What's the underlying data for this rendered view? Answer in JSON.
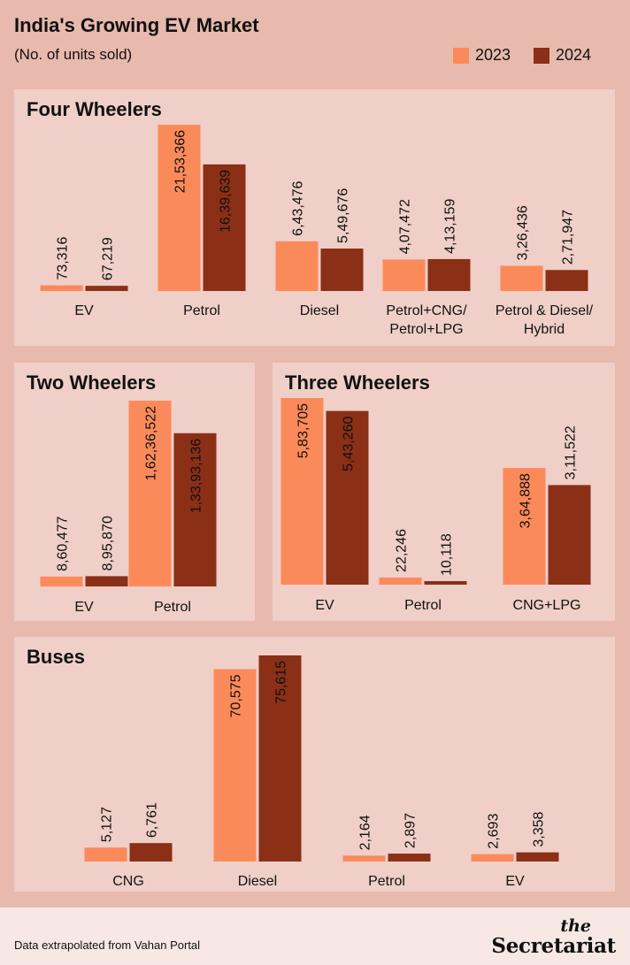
{
  "header": {
    "title": "India's Growing EV Market",
    "subtitle": "(No. of units sold)"
  },
  "legend": [
    {
      "label": "2023",
      "color": "#fb8a5b"
    },
    {
      "label": "2024",
      "color": "#8b2f17"
    }
  ],
  "chart_data": [
    {
      "type": "bar",
      "title": "Four Wheelers",
      "categories": [
        "EV",
        "Petrol",
        "Diesel",
        "Petrol+CNG/\nPetrol+LPG",
        "Petrol & Diesel/\nHybrid"
      ],
      "series": [
        {
          "name": "2023",
          "values": [
            73316,
            2153366,
            643476,
            407472,
            326436
          ],
          "labels": [
            "73,316",
            "21,53,366",
            "6,43,476",
            "4,07,472",
            "3,26,436"
          ]
        },
        {
          "name": "2024",
          "values": [
            67219,
            1639639,
            549676,
            413159,
            271947
          ],
          "labels": [
            "67,219",
            "16,39,639",
            "5,49,676",
            "4,13,159",
            "2,71,947"
          ]
        }
      ]
    },
    {
      "type": "bar",
      "title": "Two Wheelers",
      "categories": [
        "EV",
        "Petrol"
      ],
      "series": [
        {
          "name": "2023",
          "values": [
            860477,
            16236522
          ],
          "labels": [
            "8,60,477",
            "1,62,36,522"
          ]
        },
        {
          "name": "2024",
          "values": [
            895870,
            13393136
          ],
          "labels": [
            "8,95,870",
            "1,33,93,136"
          ]
        }
      ]
    },
    {
      "type": "bar",
      "title": "Three Wheelers",
      "categories": [
        "EV",
        "Petrol",
        "CNG+LPG"
      ],
      "series": [
        {
          "name": "2023",
          "values": [
            583705,
            22246,
            364888
          ],
          "labels": [
            "5,83,705",
            "22,246",
            "3,64,888"
          ]
        },
        {
          "name": "2024",
          "values": [
            543260,
            10118,
            311522
          ],
          "labels": [
            "5,43,260",
            "10,118",
            "3,11,522"
          ]
        }
      ]
    },
    {
      "type": "bar",
      "title": "Buses",
      "categories": [
        "CNG",
        "Diesel",
        "Petrol",
        "EV"
      ],
      "series": [
        {
          "name": "2023",
          "values": [
            5127,
            70575,
            2164,
            2693
          ],
          "labels": [
            "5,127",
            "70,575",
            "2,164",
            "2,693"
          ]
        },
        {
          "name": "2024",
          "values": [
            6761,
            75615,
            2897,
            3358
          ],
          "labels": [
            "6,761",
            "75,615",
            "2,897",
            "3,358"
          ]
        }
      ]
    }
  ],
  "footer": {
    "source": "Data extrapolated from Vahan Portal",
    "brand_the": "the",
    "brand_name": "Secretariat"
  }
}
